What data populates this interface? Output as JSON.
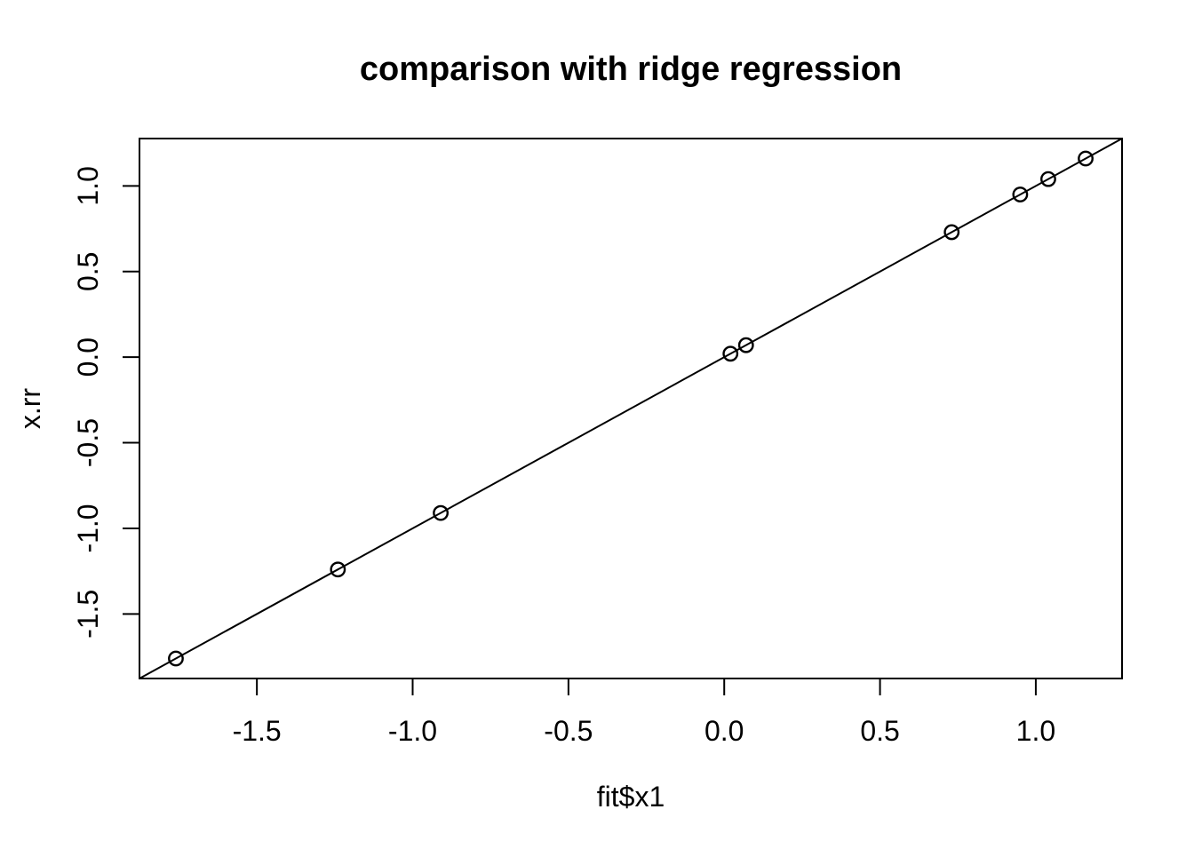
{
  "chart_data": {
    "type": "scatter",
    "title": "comparison with ridge regression",
    "xlabel": "fit$x1",
    "ylabel": "x.rr",
    "xlim": [
      -1.8768,
      1.2768
    ],
    "ylim": [
      -1.8768,
      1.2768
    ],
    "x_ticks": {
      "values": [
        -1.5,
        -1.0,
        -0.5,
        0.0,
        0.5,
        1.0
      ],
      "labels": [
        "-1.5",
        "-1.0",
        "-0.5",
        "0.0",
        "0.5",
        "1.0"
      ]
    },
    "y_ticks": {
      "values": [
        -1.5,
        -1.0,
        -0.5,
        0.0,
        0.5,
        1.0
      ],
      "labels": [
        "-1.5",
        "-1.0",
        "-0.5",
        "0.0",
        "0.5",
        "1.0"
      ]
    },
    "points": [
      {
        "x": -1.76,
        "y": -1.76
      },
      {
        "x": -1.24,
        "y": -1.24
      },
      {
        "x": -0.91,
        "y": -0.91
      },
      {
        "x": 0.02,
        "y": 0.02
      },
      {
        "x": 0.07,
        "y": 0.07
      },
      {
        "x": 0.73,
        "y": 0.73
      },
      {
        "x": 0.95,
        "y": 0.95
      },
      {
        "x": 1.04,
        "y": 1.04
      },
      {
        "x": 1.16,
        "y": 1.16
      }
    ],
    "reference_line": {
      "slope": 1,
      "intercept": 0
    },
    "grid": false,
    "legend": null,
    "marker": {
      "shape": "open-circle",
      "color": "#000000"
    },
    "colors": {
      "foreground": "#000000",
      "background": "#ffffff"
    }
  }
}
